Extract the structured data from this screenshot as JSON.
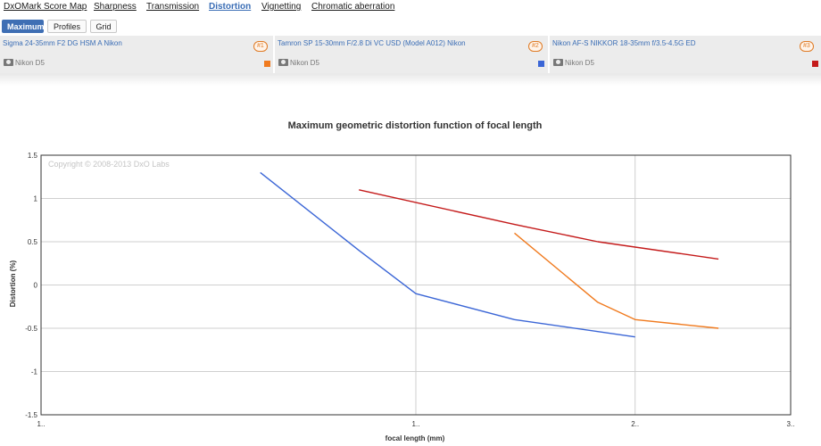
{
  "nav": {
    "items": [
      {
        "label": "DxOMark Score Map"
      },
      {
        "label": "Sharpness"
      },
      {
        "label": "Transmission"
      },
      {
        "label": "Distortion"
      },
      {
        "label": "Vignetting"
      },
      {
        "label": "Chromatic aberration"
      }
    ],
    "active": "Distortion"
  },
  "modes": {
    "buttons": [
      {
        "label": "Maximum"
      },
      {
        "label": "Profiles"
      },
      {
        "label": "Grid"
      }
    ],
    "active": "Maximum"
  },
  "lenses": [
    {
      "name": "Sigma 24-35mm F2 DG HSM A Nikon",
      "badge": "#1",
      "camera": "Nikon D5",
      "color": "#f07a1e"
    },
    {
      "name": "Tamron SP 15-30mm F/2.8 Di VC USD (Model A012) Nikon",
      "badge": "#2",
      "camera": "Nikon D5",
      "color": "#3b66d6"
    },
    {
      "name": "Nikon AF-S NIKKOR 18-35mm f/3.5-4.5G ED",
      "badge": "#3",
      "camera": "Nikon D5",
      "color": "#c41a1a"
    }
  ],
  "chart_data": {
    "type": "line",
    "title": "Maximum geometric distortion function of focal length",
    "xlabel": "focal length (mm)",
    "ylabel": "Distortion (%)",
    "x_tick_labels": [
      "1..",
      "1..",
      "2..",
      "3.."
    ],
    "y_ticks": [
      1.5,
      1,
      0.5,
      0,
      -0.5,
      -1,
      -1.5
    ],
    "ylim": [
      -1.5,
      1.5
    ],
    "grid": true,
    "copyright": "Copyright © 2008-2013 DxO Labs",
    "series": [
      {
        "name": "Sigma 24-35mm F2 DG HSM A Nikon",
        "color": "#f07a1e",
        "points": [
          [
            24,
            0.6
          ],
          [
            28,
            -0.2
          ],
          [
            30,
            -0.4
          ],
          [
            35,
            -0.5
          ]
        ]
      },
      {
        "name": "Tamron SP 15-30mm F/2.8 Di VC USD (Model A012) Nikon",
        "color": "#3b66d6",
        "points": [
          [
            15,
            1.3
          ],
          [
            18,
            0.4
          ],
          [
            20,
            -0.1
          ],
          [
            24,
            -0.4
          ],
          [
            30,
            -0.6
          ]
        ]
      },
      {
        "name": "Nikon AF-S NIKKOR 18-35mm f/3.5-4.5G ED",
        "color": "#c41a1a",
        "points": [
          [
            18,
            1.1
          ],
          [
            24,
            0.7
          ],
          [
            28,
            0.5
          ],
          [
            35,
            0.3
          ]
        ]
      }
    ]
  }
}
